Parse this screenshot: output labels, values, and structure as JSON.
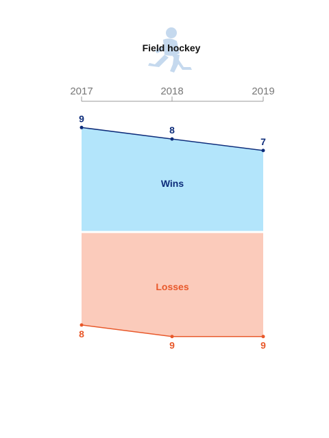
{
  "chart_data": {
    "type": "area",
    "title": "Field hockey",
    "icon": "field-hockey-player-icon",
    "x": [
      "2017",
      "2018",
      "2019"
    ],
    "series": [
      {
        "name": "Wins",
        "values": [
          9,
          8,
          7
        ],
        "color": "#0d2c7a",
        "fill": "#b3e5fb"
      },
      {
        "name": "Losses",
        "values": [
          8,
          9,
          9
        ],
        "color": "#e8582a",
        "fill": "#fbcbbb"
      }
    ],
    "icon_color": "#c5d9ee",
    "axis_color": "#999999"
  }
}
